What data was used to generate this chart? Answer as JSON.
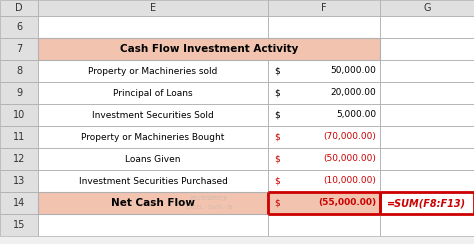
{
  "title": "Cash Flow Investment Activity",
  "rows": [
    {
      "label": "Property or Machineries sold",
      "dollar": "$",
      "value": "50,000.00",
      "negative": false
    },
    {
      "label": "Principal of Loans",
      "dollar": "$",
      "value": "20,000.00",
      "negative": false
    },
    {
      "label": "Investment Securities Sold",
      "dollar": "$",
      "value": "5,000.00",
      "negative": false
    },
    {
      "label": "Property or Machineries Bought",
      "dollar": "$",
      "value": "(70,000.00)",
      "negative": true
    },
    {
      "label": "Loans Given",
      "dollar": "$",
      "value": "(50,000.00)",
      "negative": true
    },
    {
      "label": "Investment Securities Purchased",
      "dollar": "$",
      "value": "(10,000.00)",
      "negative": true
    }
  ],
  "net_row": {
    "label": "Net Cash Flow",
    "dollar": "$",
    "value": "(55,000.00)",
    "formula": "=SUM(F8:F13)"
  },
  "header_bg": "#f2c4b0",
  "row_bg": "#ffffff",
  "net_bg": "#f2c4b0",
  "formula_bg": "#ffffff",
  "border_color": "#b0b0b0",
  "red_border": "#cc0000",
  "text_color": "#000000",
  "red_color": "#cc0000",
  "col_header_bg": "#e0e0e0",
  "grid_bg": "#f0f0f0",
  "watermark_line1": "exceldemy",
  "watermark_line2": "EXCEL · DATA · BI"
}
